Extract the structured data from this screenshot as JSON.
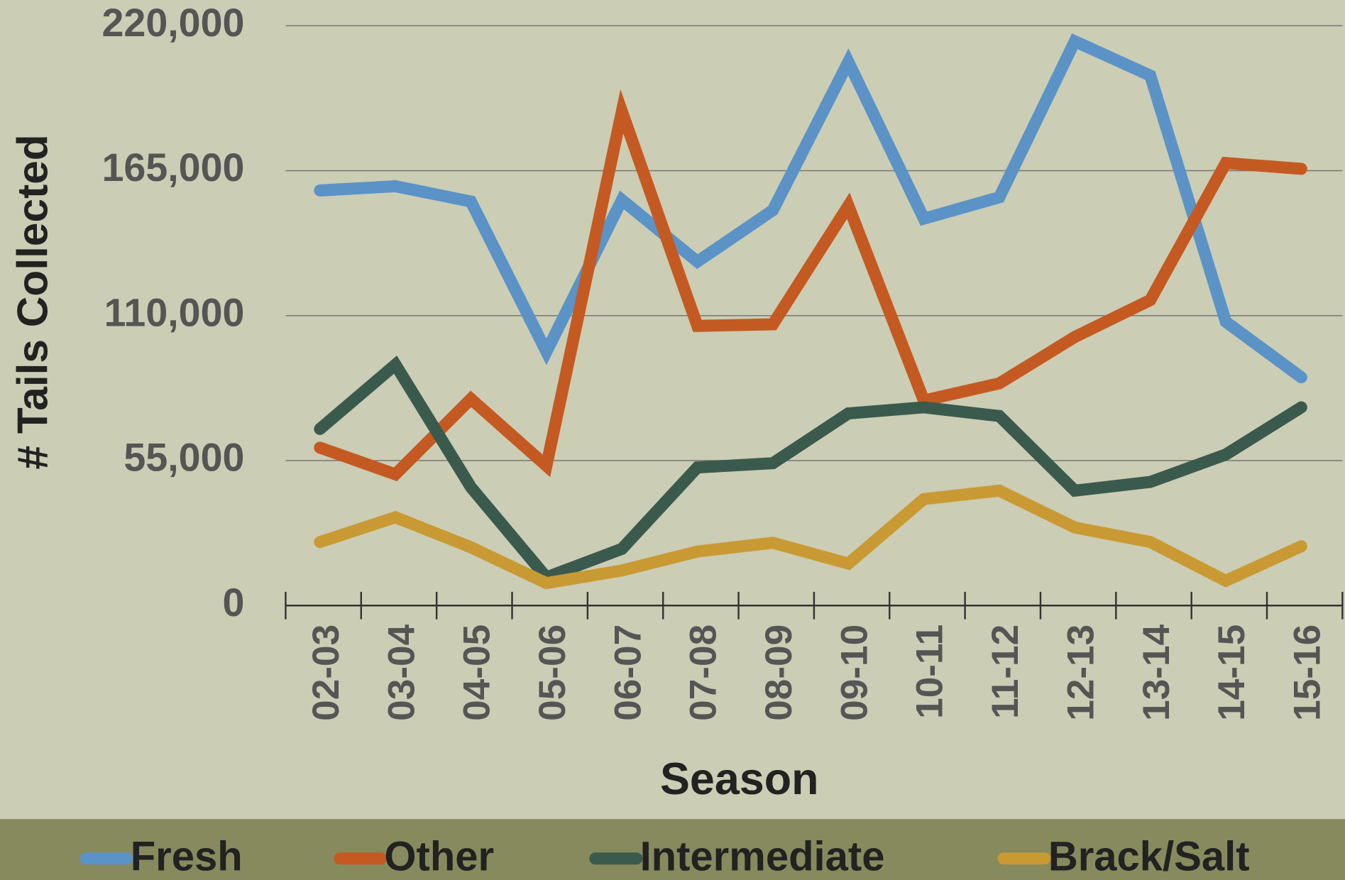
{
  "chart_data": {
    "type": "line",
    "x_label": "Season",
    "y_label": "# Tails Collected",
    "categories": [
      "02-03",
      "03-04",
      "04-05",
      "05-06",
      "06-07",
      "07-08",
      "08-09",
      "09-10",
      "10-11",
      "11-12",
      "12-13",
      "13-14",
      "14-15",
      "15-16"
    ],
    "series": [
      {
        "name": "Fresh",
        "color": "#5b93c7",
        "values": [
          157500,
          159100,
          153300,
          96300,
          153900,
          130500,
          150000,
          206300,
          146800,
          154900,
          214100,
          201100,
          107700,
          86600
        ]
      },
      {
        "name": "Other",
        "color": "#c45a22",
        "values": [
          59900,
          49800,
          78400,
          53000,
          187500,
          106100,
          106700,
          151700,
          77800,
          84300,
          101900,
          115900,
          167900,
          165700
        ]
      },
      {
        "name": "Intermediate",
        "color": "#3b5a4e",
        "values": [
          67000,
          91400,
          44900,
          10700,
          21500,
          52400,
          54000,
          72900,
          75200,
          71900,
          43600,
          46900,
          57300,
          75200
        ]
      },
      {
        "name": "Brack/Salt",
        "color": "#c99a33",
        "values": [
          24100,
          33500,
          22100,
          8500,
          13300,
          20500,
          23800,
          15900,
          40400,
          43600,
          29600,
          24100,
          9400,
          22500
        ]
      }
    ],
    "ylim": [
      0,
      220000
    ],
    "yticks": [
      0,
      {
        "value": 55000,
        "label": "55,000"
      },
      {
        "value": 110000,
        "label": "110,000"
      },
      {
        "value": 165000,
        "label": "165,000"
      },
      {
        "value": 220000,
        "label": "220,000"
      }
    ],
    "grid": true,
    "legend": "bottom"
  }
}
